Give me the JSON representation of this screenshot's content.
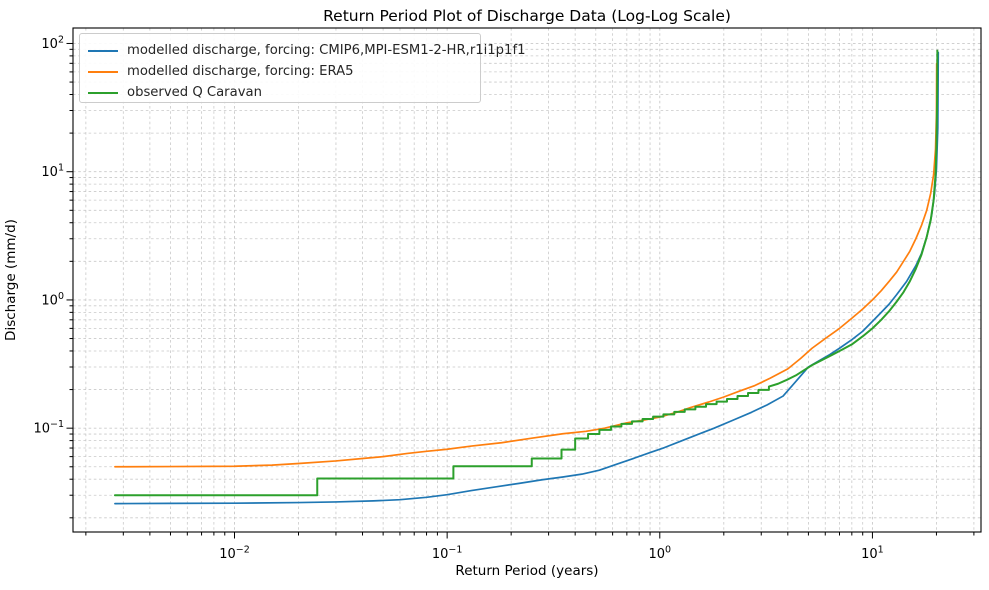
{
  "title": "Return Period Plot of Discharge Data (Log-Log Scale)",
  "chart_data": {
    "type": "line",
    "title": "Return Period Plot of Discharge Data (Log-Log Scale)",
    "xlabel": "Return Period (years)",
    "ylabel": "Discharge (mm/d)",
    "x_scale": "log",
    "y_scale": "log",
    "xlim": [
      0.00174,
      32.4
    ],
    "ylim": [
      0.0155,
      132
    ],
    "grid": "major-and-minor, dashed, light gray",
    "legend_position": "upper left",
    "tick_base": "10",
    "x_ticks": [
      {
        "value": 0.01,
        "exp": "−2"
      },
      {
        "value": 0.1,
        "exp": "−1"
      },
      {
        "value": 1,
        "exp": "0"
      },
      {
        "value": 10,
        "exp": "1"
      }
    ],
    "y_ticks": [
      {
        "value": 0.1,
        "exp": "−1"
      },
      {
        "value": 1,
        "exp": "0"
      },
      {
        "value": 10,
        "exp": "1"
      },
      {
        "value": 100,
        "exp": "2"
      }
    ],
    "series": [
      {
        "name": "modelled discharge, forcing: CMIP6,MPI-ESM1-2-HR,r1i1p1f1",
        "color": "#1f77b4",
        "line_width": 1.7,
        "points": [
          [
            0.00274,
            0.0258
          ],
          [
            0.005,
            0.0259
          ],
          [
            0.01,
            0.026
          ],
          [
            0.02,
            0.0263
          ],
          [
            0.03,
            0.0266
          ],
          [
            0.045,
            0.0271
          ],
          [
            0.06,
            0.0277
          ],
          [
            0.08,
            0.0289
          ],
          [
            0.1,
            0.0303
          ],
          [
            0.13,
            0.0326
          ],
          [
            0.17,
            0.0349
          ],
          [
            0.22,
            0.0372
          ],
          [
            0.28,
            0.0396
          ],
          [
            0.35,
            0.0416
          ],
          [
            0.43,
            0.0438
          ],
          [
            0.52,
            0.047
          ],
          [
            0.63,
            0.0525
          ],
          [
            0.75,
            0.058
          ],
          [
            0.9,
            0.0645
          ],
          [
            1.05,
            0.0705
          ],
          [
            1.25,
            0.079
          ],
          [
            1.5,
            0.089
          ],
          [
            1.8,
            0.1
          ],
          [
            2.2,
            0.115
          ],
          [
            2.7,
            0.133
          ],
          [
            3.2,
            0.152
          ],
          [
            3.8,
            0.178
          ],
          [
            4.4,
            0.235
          ],
          [
            5.0,
            0.3
          ],
          [
            5.6,
            0.335
          ],
          [
            6.3,
            0.375
          ],
          [
            7.0,
            0.42
          ],
          [
            8.0,
            0.49
          ],
          [
            9.0,
            0.57
          ],
          [
            10.0,
            0.68
          ],
          [
            11.0,
            0.8
          ],
          [
            12.0,
            0.93
          ],
          [
            13.0,
            1.1
          ],
          [
            14.5,
            1.4
          ],
          [
            16.0,
            1.85
          ],
          [
            17.0,
            2.3
          ],
          [
            18.0,
            3.1
          ],
          [
            19.0,
            4.6
          ],
          [
            19.6,
            6.8
          ],
          [
            20.0,
            10.5
          ],
          [
            20.3,
            22
          ],
          [
            20.4,
            85
          ]
        ]
      },
      {
        "name": "modelled discharge, forcing: ERA5",
        "color": "#ff7f0e",
        "line_width": 1.7,
        "points": [
          [
            0.00274,
            0.05
          ],
          [
            0.005,
            0.0502
          ],
          [
            0.01,
            0.0505
          ],
          [
            0.015,
            0.0515
          ],
          [
            0.02,
            0.053
          ],
          [
            0.03,
            0.0555
          ],
          [
            0.04,
            0.058
          ],
          [
            0.05,
            0.06
          ],
          [
            0.065,
            0.0635
          ],
          [
            0.08,
            0.066
          ],
          [
            0.1,
            0.0685
          ],
          [
            0.13,
            0.0725
          ],
          [
            0.18,
            0.077
          ],
          [
            0.25,
            0.0835
          ],
          [
            0.35,
            0.0905
          ],
          [
            0.45,
            0.0945
          ],
          [
            0.55,
            0.1
          ],
          [
            0.7,
            0.11
          ],
          [
            0.85,
            0.116
          ],
          [
            1.0,
            0.122
          ],
          [
            1.2,
            0.133
          ],
          [
            1.4,
            0.145
          ],
          [
            1.7,
            0.16
          ],
          [
            2.0,
            0.175
          ],
          [
            2.4,
            0.196
          ],
          [
            2.8,
            0.215
          ],
          [
            3.3,
            0.245
          ],
          [
            4.0,
            0.29
          ],
          [
            4.6,
            0.35
          ],
          [
            5.2,
            0.42
          ],
          [
            6.0,
            0.5
          ],
          [
            7.0,
            0.6
          ],
          [
            8.0,
            0.72
          ],
          [
            9.0,
            0.85
          ],
          [
            10.0,
            1.0
          ],
          [
            11.0,
            1.18
          ],
          [
            12.0,
            1.4
          ],
          [
            13.0,
            1.65
          ],
          [
            14.0,
            2.0
          ],
          [
            15.0,
            2.4
          ],
          [
            16.0,
            3.0
          ],
          [
            17.0,
            3.8
          ],
          [
            18.0,
            5.0
          ],
          [
            18.8,
            6.8
          ],
          [
            19.4,
            9.5
          ],
          [
            19.8,
            15
          ],
          [
            20.0,
            28
          ],
          [
            20.05,
            70
          ]
        ]
      },
      {
        "name": "observed Q Caravan",
        "color": "#2ca02c",
        "line_width": 2.0,
        "points": [
          [
            0.00274,
            0.03
          ],
          [
            0.0245,
            0.03
          ],
          [
            0.0245,
            0.0405
          ],
          [
            0.107,
            0.0405
          ],
          [
            0.107,
            0.0505
          ],
          [
            0.25,
            0.0505
          ],
          [
            0.25,
            0.058
          ],
          [
            0.345,
            0.058
          ],
          [
            0.345,
            0.068
          ],
          [
            0.4,
            0.068
          ],
          [
            0.4,
            0.083
          ],
          [
            0.46,
            0.083
          ],
          [
            0.46,
            0.09
          ],
          [
            0.52,
            0.09
          ],
          [
            0.52,
            0.097
          ],
          [
            0.59,
            0.097
          ],
          [
            0.59,
            0.103
          ],
          [
            0.66,
            0.103
          ],
          [
            0.66,
            0.108
          ],
          [
            0.74,
            0.108
          ],
          [
            0.74,
            0.113
          ],
          [
            0.83,
            0.113
          ],
          [
            0.83,
            0.118
          ],
          [
            0.93,
            0.118
          ],
          [
            0.93,
            0.123
          ],
          [
            1.04,
            0.123
          ],
          [
            1.04,
            0.128
          ],
          [
            1.17,
            0.128
          ],
          [
            1.17,
            0.134
          ],
          [
            1.31,
            0.134
          ],
          [
            1.31,
            0.14
          ],
          [
            1.47,
            0.14
          ],
          [
            1.47,
            0.147
          ],
          [
            1.65,
            0.147
          ],
          [
            1.65,
            0.154
          ],
          [
            1.85,
            0.154
          ],
          [
            1.85,
            0.161
          ],
          [
            2.07,
            0.161
          ],
          [
            2.07,
            0.169
          ],
          [
            2.32,
            0.169
          ],
          [
            2.32,
            0.178
          ],
          [
            2.6,
            0.178
          ],
          [
            2.6,
            0.188
          ],
          [
            2.91,
            0.188
          ],
          [
            2.91,
            0.199
          ],
          [
            3.26,
            0.199
          ],
          [
            3.26,
            0.211
          ],
          [
            3.6,
            0.222
          ],
          [
            4.0,
            0.24
          ],
          [
            4.4,
            0.26
          ],
          [
            4.8,
            0.285
          ],
          [
            5.2,
            0.31
          ],
          [
            5.8,
            0.34
          ],
          [
            6.5,
            0.375
          ],
          [
            7.2,
            0.41
          ],
          [
            8.0,
            0.45
          ],
          [
            9.0,
            0.52
          ],
          [
            10.0,
            0.6
          ],
          [
            11.0,
            0.7
          ],
          [
            12.0,
            0.82
          ],
          [
            13.0,
            0.97
          ],
          [
            14.0,
            1.15
          ],
          [
            15.0,
            1.4
          ],
          [
            16.0,
            1.75
          ],
          [
            17.0,
            2.25
          ],
          [
            18.0,
            3.1
          ],
          [
            18.8,
            4.2
          ],
          [
            19.4,
            6.0
          ],
          [
            19.8,
            9.5
          ],
          [
            20.0,
            16
          ],
          [
            20.15,
            40
          ],
          [
            20.2,
            88
          ]
        ]
      }
    ]
  }
}
